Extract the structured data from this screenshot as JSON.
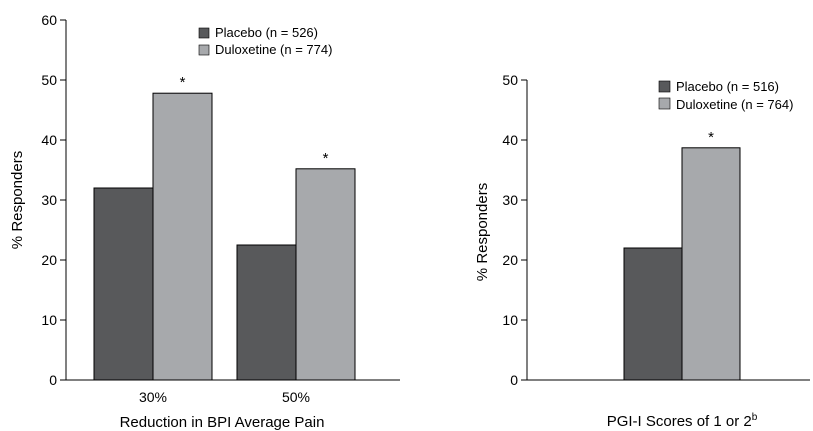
{
  "chart_data": [
    {
      "type": "bar",
      "title": "",
      "xlabel": "Reduction in BPI Average Pain",
      "ylabel": "% Responders",
      "ylim": [
        0,
        60
      ],
      "yticks": [
        "0",
        "10",
        "20",
        "30",
        "40",
        "50",
        "60"
      ],
      "categories": [
        "30%",
        "50%"
      ],
      "series": [
        {
          "name": "Placebo (n = 526)",
          "values": [
            32,
            22.5
          ],
          "color": "#58595b"
        },
        {
          "name": "Duloxetine (n = 774)",
          "values": [
            47.8,
            35.2
          ],
          "color": "#a7a9ac"
        }
      ],
      "annotations": [
        {
          "category": "30%",
          "series": "Duloxetine (n = 774)",
          "text": "*"
        },
        {
          "category": "50%",
          "series": "Duloxetine (n = 774)",
          "text": "*"
        }
      ],
      "legend": "top-right",
      "grid": false
    },
    {
      "type": "bar",
      "title": "",
      "xlabel": "PGI-I Scores of 1 or 2",
      "xlabel_superscript": "b",
      "ylabel": "% Responders",
      "ylim": [
        0,
        50
      ],
      "yticks": [
        "0",
        "10",
        "20",
        "30",
        "40",
        "50"
      ],
      "categories": [
        ""
      ],
      "series": [
        {
          "name": "Placebo (n = 516)",
          "values": [
            22
          ],
          "color": "#58595b"
        },
        {
          "name": "Duloxetine (n = 764)",
          "values": [
            38.7
          ],
          "color": "#a7a9ac"
        }
      ],
      "annotations": [
        {
          "category": "",
          "series": "Duloxetine (n = 764)",
          "text": "*"
        }
      ],
      "legend": "top-right",
      "grid": false
    }
  ]
}
